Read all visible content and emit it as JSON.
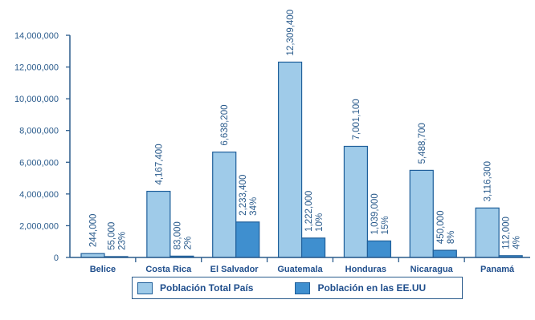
{
  "chart_data": {
    "type": "bar",
    "categories": [
      "Belice",
      "Costa Rica",
      "El Salvador",
      "Guatemala",
      "Honduras",
      "Nicaragua",
      "Panamá"
    ],
    "series": [
      {
        "name": "Población Total País",
        "values": [
          244000,
          4167400,
          6638200,
          12309400,
          7001100,
          5488700,
          3116300
        ],
        "labels": [
          "244,000",
          "4,167,400",
          "6,638,200",
          "12,309,400",
          "7,001,100",
          "5,488,700",
          "3,116,300"
        ],
        "color": "#9fcbe9"
      },
      {
        "name": "Población en las EE.UU",
        "values": [
          55000,
          83000,
          2233400,
          1222000,
          1039000,
          450000,
          112000
        ],
        "labels": [
          "55,000",
          "83,000",
          "2,233,400",
          "1,222,000",
          "1,039,000",
          "450,000",
          "112,000"
        ],
        "percents": [
          "23%",
          "2%",
          "34%",
          "10%",
          "15%",
          "8%",
          "4%"
        ],
        "color": "#3f8fcf"
      }
    ],
    "y_ticks": [
      "0",
      "2,000,000",
      "4,000,000",
      "6,000,000",
      "8,000,000",
      "10,000,000",
      "12,000,000",
      "14,000,000"
    ],
    "ylim": [
      0,
      14000000
    ],
    "grid": false,
    "legend_position": "bottom",
    "title": "",
    "xlabel": "",
    "ylabel": ""
  }
}
